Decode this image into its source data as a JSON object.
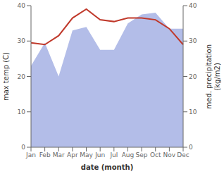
{
  "chart_data": {
    "type": "area_line",
    "categories": [
      "Jan",
      "Feb",
      "Mar",
      "Apr",
      "May",
      "Jun",
      "Jul",
      "Aug",
      "Sep",
      "Oct",
      "Nov",
      "Dec"
    ],
    "series": [
      {
        "type": "area",
        "color": "#b3bde8",
        "axis": "y2",
        "values": [
          23.0,
          29.5,
          20.0,
          33.0,
          34.0,
          27.5,
          27.5,
          35.0,
          37.5,
          38.0,
          33.5,
          33.5
        ]
      },
      {
        "type": "line",
        "color": "#c0392b",
        "values": [
          29.5,
          29.0,
          31.5,
          36.5,
          39.0,
          36.0,
          35.5,
          36.5,
          36.5,
          36.0,
          33.5,
          29.0
        ]
      }
    ],
    "xlabel": "date (month)",
    "ylabel": "max temp (C)",
    "y2label": "med. precipitation\n(kg/m2)",
    "ylim": [
      0,
      40
    ],
    "yticks": [
      0,
      10,
      20,
      30,
      40
    ],
    "y2lim": [
      0,
      40
    ],
    "y2ticks": [
      0,
      10,
      20,
      30,
      40
    ],
    "grid": false
  }
}
